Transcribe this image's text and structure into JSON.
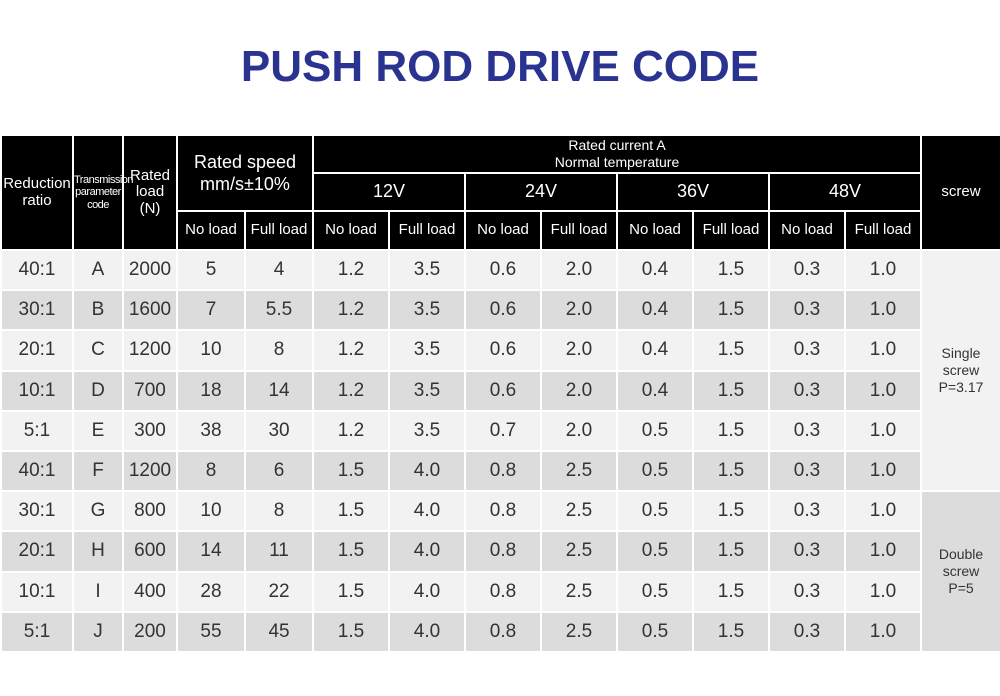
{
  "title": "PUSH ROD DRIVE CODE",
  "headers": {
    "reduction_ratio": [
      "Reduction",
      "ratio"
    ],
    "transmission_code": [
      "Transmission",
      "parameter",
      "code"
    ],
    "rated_load": [
      "Rated",
      "load",
      "(N)"
    ],
    "rated_speed": [
      "Rated speed",
      "mm/s±10%"
    ],
    "rated_current": [
      "Rated current  A",
      "Normal temperature"
    ],
    "voltages": [
      "12V",
      "24V",
      "36V",
      "48V"
    ],
    "no_load": "No load",
    "full_load": "Full load",
    "screw": "screw"
  },
  "rows": [
    {
      "ratio": "40:1",
      "code": "A",
      "load": "2000",
      "speed_no": "5",
      "speed_full": "4",
      "c12_no": "1.2",
      "c12_full": "3.5",
      "c24_no": "0.6",
      "c24_full": "2.0",
      "c36_no": "0.4",
      "c36_full": "1.5",
      "c48_no": "0.3",
      "c48_full": "1.0"
    },
    {
      "ratio": "30:1",
      "code": "B",
      "load": "1600",
      "speed_no": "7",
      "speed_full": "5.5",
      "c12_no": "1.2",
      "c12_full": "3.5",
      "c24_no": "0.6",
      "c24_full": "2.0",
      "c36_no": "0.4",
      "c36_full": "1.5",
      "c48_no": "0.3",
      "c48_full": "1.0"
    },
    {
      "ratio": "20:1",
      "code": "C",
      "load": "1200",
      "speed_no": "10",
      "speed_full": "8",
      "c12_no": "1.2",
      "c12_full": "3.5",
      "c24_no": "0.6",
      "c24_full": "2.0",
      "c36_no": "0.4",
      "c36_full": "1.5",
      "c48_no": "0.3",
      "c48_full": "1.0"
    },
    {
      "ratio": "10:1",
      "code": "D",
      "load": "700",
      "speed_no": "18",
      "speed_full": "14",
      "c12_no": "1.2",
      "c12_full": "3.5",
      "c24_no": "0.6",
      "c24_full": "2.0",
      "c36_no": "0.4",
      "c36_full": "1.5",
      "c48_no": "0.3",
      "c48_full": "1.0"
    },
    {
      "ratio": "5:1",
      "code": "E",
      "load": "300",
      "speed_no": "38",
      "speed_full": "30",
      "c12_no": "1.2",
      "c12_full": "3.5",
      "c24_no": "0.7",
      "c24_full": "2.0",
      "c36_no": "0.5",
      "c36_full": "1.5",
      "c48_no": "0.3",
      "c48_full": "1.0"
    },
    {
      "ratio": "40:1",
      "code": "F",
      "load": "1200",
      "speed_no": "8",
      "speed_full": "6",
      "c12_no": "1.5",
      "c12_full": "4.0",
      "c24_no": "0.8",
      "c24_full": "2.5",
      "c36_no": "0.5",
      "c36_full": "1.5",
      "c48_no": "0.3",
      "c48_full": "1.0"
    },
    {
      "ratio": "30:1",
      "code": "G",
      "load": "800",
      "speed_no": "10",
      "speed_full": "8",
      "c12_no": "1.5",
      "c12_full": "4.0",
      "c24_no": "0.8",
      "c24_full": "2.5",
      "c36_no": "0.5",
      "c36_full": "1.5",
      "c48_no": "0.3",
      "c48_full": "1.0"
    },
    {
      "ratio": "20:1",
      "code": "H",
      "load": "600",
      "speed_no": "14",
      "speed_full": "11",
      "c12_no": "1.5",
      "c12_full": "4.0",
      "c24_no": "0.8",
      "c24_full": "2.5",
      "c36_no": "0.5",
      "c36_full": "1.5",
      "c48_no": "0.3",
      "c48_full": "1.0"
    },
    {
      "ratio": "10:1",
      "code": "I",
      "load": "400",
      "speed_no": "28",
      "speed_full": "22",
      "c12_no": "1.5",
      "c12_full": "4.0",
      "c24_no": "0.8",
      "c24_full": "2.5",
      "c36_no": "0.5",
      "c36_full": "1.5",
      "c48_no": "0.3",
      "c48_full": "1.0"
    },
    {
      "ratio": "5:1",
      "code": "J",
      "load": "200",
      "speed_no": "55",
      "speed_full": "45",
      "c12_no": "1.5",
      "c12_full": "4.0",
      "c24_no": "0.8",
      "c24_full": "2.5",
      "c36_no": "0.5",
      "c36_full": "1.5",
      "c48_no": "0.3",
      "c48_full": "1.0"
    }
  ],
  "screw_groups": [
    {
      "lines": [
        "Single",
        "screw",
        "P=3.17"
      ]
    },
    {
      "lines": [
        "Double",
        "screw",
        "P=5"
      ]
    }
  ],
  "colors": {
    "title": "#2b3390",
    "header_bg": "#000000",
    "row_light": "#f2f2f2",
    "row_dark": "#dcdcdc"
  }
}
